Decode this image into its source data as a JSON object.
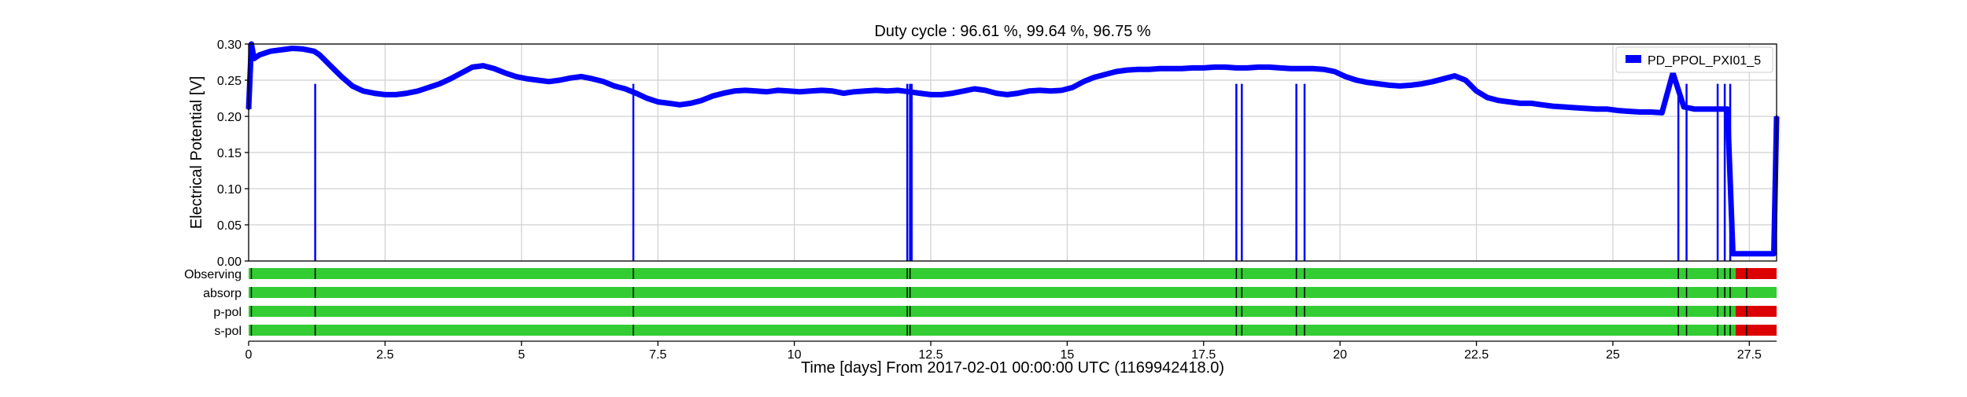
{
  "chart_data": {
    "type": "line",
    "title": "Duty cycle : 96.61 %, 99.64 %, 96.75 %",
    "xlabel": "Time [days] From 2017-02-01 00:00:00 UTC (1169942418.0)",
    "ylabel": "Electrical Potential [V]",
    "xlim": [
      0,
      28
    ],
    "ylim": [
      0,
      0.3
    ],
    "xticks": [
      0,
      2.5,
      5,
      7.5,
      10,
      12.5,
      15,
      17.5,
      20,
      22.5,
      25,
      27.5
    ],
    "xtick_labels": [
      "0",
      "2.5",
      "5",
      "7.5",
      "10",
      "12.5",
      "15",
      "17.5",
      "20",
      "22.5",
      "25",
      "27.5"
    ],
    "yticks": [
      0,
      0.05,
      0.1,
      0.15,
      0.2,
      0.25,
      0.3
    ],
    "ytick_labels": [
      "0.00",
      "0.05",
      "0.10",
      "0.15",
      "0.20",
      "0.25",
      "0.30"
    ],
    "grid": true,
    "legend_position": "top-right",
    "series": [
      {
        "name": "PD_PPOL_PXI01_5",
        "color": "#0000ff",
        "x": [
          0,
          0.05,
          0.1,
          0.2,
          0.4,
          0.6,
          0.8,
          1.0,
          1.2,
          1.3,
          1.5,
          1.7,
          1.9,
          2.1,
          2.3,
          2.5,
          2.7,
          2.9,
          3.1,
          3.3,
          3.5,
          3.7,
          3.9,
          4.1,
          4.3,
          4.5,
          4.7,
          4.9,
          5.1,
          5.3,
          5.5,
          5.7,
          5.9,
          6.1,
          6.3,
          6.5,
          6.7,
          6.9,
          7.1,
          7.3,
          7.5,
          7.7,
          7.9,
          8.1,
          8.3,
          8.5,
          8.7,
          8.9,
          9.1,
          9.3,
          9.5,
          9.7,
          9.9,
          10.1,
          10.3,
          10.5,
          10.7,
          10.9,
          11.1,
          11.3,
          11.5,
          11.7,
          11.9,
          12.1,
          12.3,
          12.5,
          12.7,
          12.9,
          13.1,
          13.3,
          13.5,
          13.7,
          13.9,
          14.1,
          14.3,
          14.5,
          14.7,
          14.9,
          15.1,
          15.3,
          15.5,
          15.7,
          15.9,
          16.1,
          16.3,
          16.5,
          16.7,
          16.9,
          17.1,
          17.3,
          17.5,
          17.7,
          17.9,
          18.1,
          18.3,
          18.5,
          18.7,
          18.9,
          19.1,
          19.3,
          19.5,
          19.7,
          19.9,
          20.1,
          20.3,
          20.5,
          20.7,
          20.9,
          21.1,
          21.3,
          21.5,
          21.7,
          21.9,
          22.1,
          22.3,
          22.5,
          22.7,
          22.9,
          23.1,
          23.3,
          23.5,
          23.7,
          23.9,
          24.1,
          24.3,
          24.5,
          24.7,
          24.9,
          25.1,
          25.3,
          25.5,
          25.7,
          25.9,
          26.1,
          26.3,
          26.5,
          26.7,
          26.9,
          27.1,
          27.2,
          27.4,
          27.6,
          27.8,
          27.95,
          28.0
        ],
        "y": [
          0.21,
          0.3,
          0.28,
          0.285,
          0.29,
          0.292,
          0.294,
          0.293,
          0.29,
          0.285,
          0.27,
          0.255,
          0.242,
          0.235,
          0.232,
          0.23,
          0.23,
          0.232,
          0.235,
          0.24,
          0.245,
          0.252,
          0.26,
          0.268,
          0.27,
          0.266,
          0.26,
          0.255,
          0.252,
          0.25,
          0.248,
          0.25,
          0.253,
          0.255,
          0.252,
          0.248,
          0.242,
          0.238,
          0.232,
          0.225,
          0.22,
          0.218,
          0.216,
          0.218,
          0.222,
          0.228,
          0.232,
          0.235,
          0.236,
          0.235,
          0.234,
          0.236,
          0.235,
          0.234,
          0.235,
          0.236,
          0.235,
          0.232,
          0.234,
          0.235,
          0.236,
          0.235,
          0.236,
          0.234,
          0.232,
          0.23,
          0.23,
          0.232,
          0.235,
          0.238,
          0.236,
          0.232,
          0.23,
          0.232,
          0.235,
          0.236,
          0.235,
          0.236,
          0.24,
          0.248,
          0.254,
          0.258,
          0.262,
          0.264,
          0.265,
          0.265,
          0.266,
          0.266,
          0.266,
          0.267,
          0.267,
          0.268,
          0.268,
          0.267,
          0.267,
          0.268,
          0.268,
          0.267,
          0.266,
          0.266,
          0.266,
          0.265,
          0.262,
          0.255,
          0.25,
          0.247,
          0.245,
          0.243,
          0.242,
          0.243,
          0.245,
          0.248,
          0.252,
          0.256,
          0.25,
          0.235,
          0.226,
          0.222,
          0.22,
          0.218,
          0.218,
          0.216,
          0.214,
          0.213,
          0.212,
          0.211,
          0.21,
          0.21,
          0.208,
          0.207,
          0.206,
          0.206,
          0.205,
          0.26,
          0.213,
          0.21,
          0.21,
          0.21,
          0.21,
          0.01,
          0.01,
          0.01,
          0.01,
          0.01,
          0.2
        ]
      }
    ],
    "dropouts": [
      1.22,
      7.05,
      12.07,
      12.12,
      12.15,
      18.1,
      18.2,
      19.2,
      19.35,
      26.2,
      26.35,
      26.92,
      27.05,
      27.15
    ],
    "state_bars": {
      "labels": [
        "Observing",
        "absorp",
        "p-pol",
        "s-pol"
      ],
      "active_color": "#33cc33",
      "inactive_color": "#dd0000",
      "marker_color": "#000000",
      "rows": [
        {
          "segments": [
            {
              "start": 0,
              "end": 27.25,
              "state": "on"
            },
            {
              "start": 27.25,
              "end": 28,
              "state": "off"
            }
          ],
          "markers": [
            0.05,
            1.22,
            7.05,
            12.07,
            12.12,
            18.1,
            18.2,
            19.2,
            19.35,
            26.2,
            26.35,
            26.92,
            27.05,
            27.15,
            27.45
          ]
        },
        {
          "segments": [
            {
              "start": 0,
              "end": 28,
              "state": "on"
            }
          ],
          "markers": [
            0.05,
            1.22,
            7.05,
            12.07,
            12.12,
            18.1,
            18.2,
            19.2,
            19.35,
            26.2,
            26.35,
            26.92,
            27.05,
            27.15,
            27.45
          ]
        },
        {
          "segments": [
            {
              "start": 0,
              "end": 27.25,
              "state": "on"
            },
            {
              "start": 27.25,
              "end": 28,
              "state": "off"
            }
          ],
          "markers": [
            0.05,
            1.22,
            7.05,
            12.07,
            12.12,
            18.1,
            18.2,
            19.2,
            19.35,
            26.2,
            26.35,
            26.92,
            27.05,
            27.15,
            27.45
          ]
        },
        {
          "segments": [
            {
              "start": 0,
              "end": 27.25,
              "state": "on"
            },
            {
              "start": 27.25,
              "end": 28,
              "state": "off"
            }
          ],
          "markers": [
            0.05,
            1.22,
            7.05,
            12.07,
            12.12,
            18.1,
            18.2,
            19.2,
            19.35,
            26.2,
            26.35,
            26.92,
            27.05,
            27.15,
            27.45
          ]
        }
      ]
    }
  }
}
